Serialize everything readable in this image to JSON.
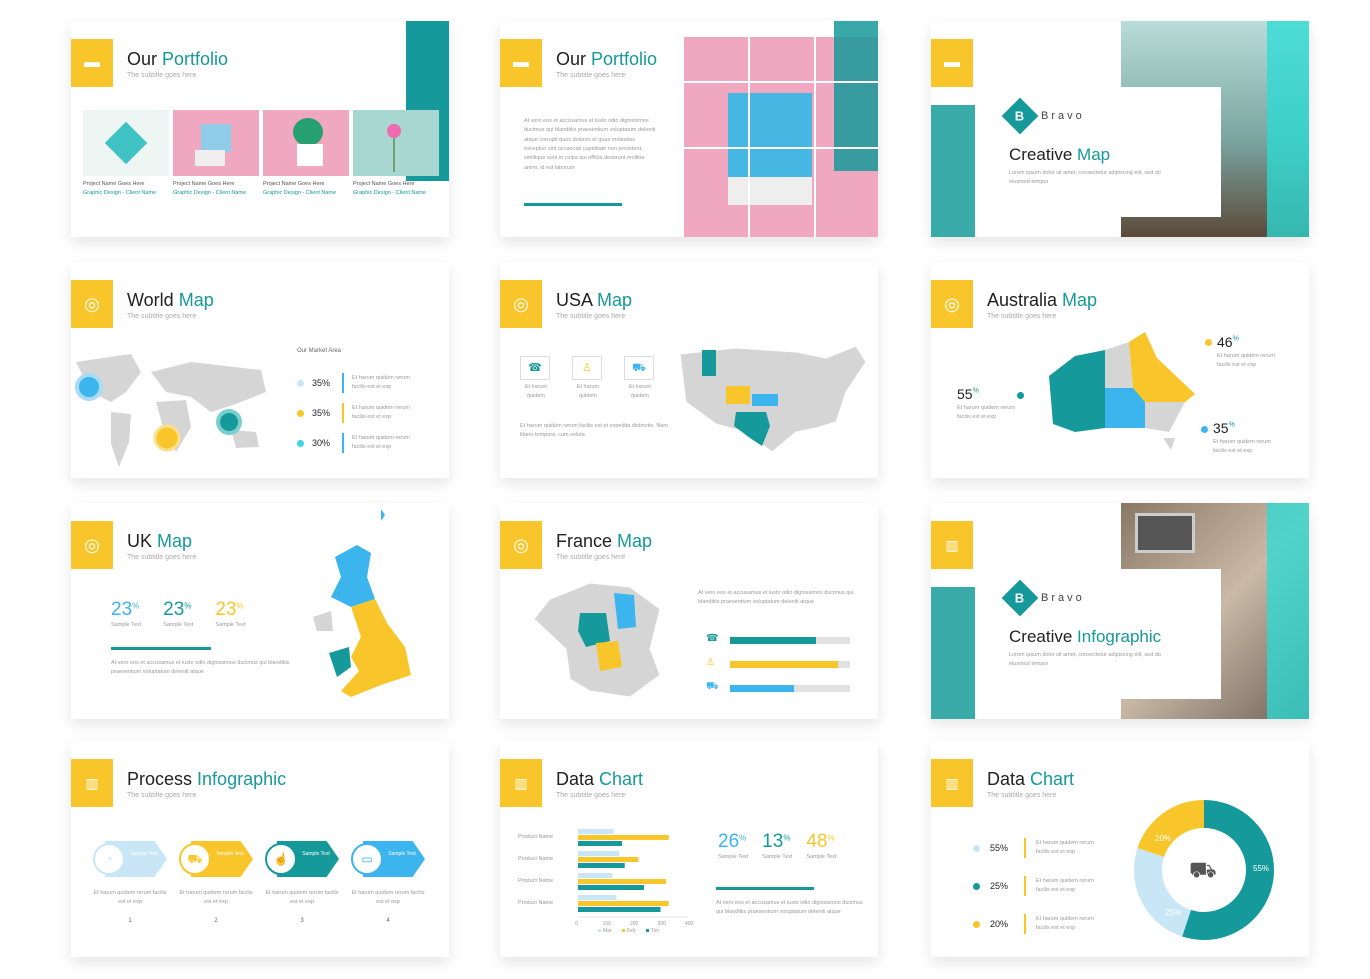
{
  "colors": {
    "teal": "#16999a",
    "yellow": "#f8c62a",
    "blue": "#3cb4ee",
    "lightblue": "#c9e6f7",
    "gray": "#d5d5d5",
    "pink": "#f0a8c0"
  },
  "subtitle": "The subtitle goes here",
  "lorem_short": "At vero eos et accusamus et iusto odio dignissimos ducimus qui blanditiis praesentium voluptatum deleniti atque",
  "lorem_long": "At vero eos et accusamus et iusto odio dignissimos ducimus qui blanditiis praesentium voluptatum deleniti atque corrupti quos dolores et quas molestias excepturi sint occaecati cupiditate non provident, similique sunt in culpa qui officia deserunt mollitia animi, id est laborum",
  "lorem_bravo": "Lorem ipsum dolor sit amet, consectetur adipiscing elit, sed do eiusmod tempor",
  "etharum": "Et harum quidem rerum facilis est et exp",
  "portfolio": {
    "t1": "Our",
    "t2": "Portfolio",
    "projects": [
      {
        "name": "Project Name Goes Here",
        "client": "Graphic Design - Client Name"
      },
      {
        "name": "Project Name Goes Here",
        "client": "Graphic Design - Client Name"
      },
      {
        "name": "Project Name Goes Here",
        "client": "Graphic Design - Client Name"
      },
      {
        "name": "Project Name Goes Here",
        "client": "Graphic Design - Client Name"
      }
    ]
  },
  "creative_map": {
    "brand": "Bravo",
    "t1": "Creative",
    "t2": "Map"
  },
  "creative_info": {
    "brand": "Bravo",
    "t1": "Creative",
    "t2": "Infographic"
  },
  "world": {
    "t1": "World",
    "t2": "Map",
    "market_title": "Our Market Area",
    "items": [
      {
        "pct": "35%",
        "color": "#c9e6f7"
      },
      {
        "pct": "35%",
        "color": "#f8c62a"
      },
      {
        "pct": "30%",
        "color": "#3cd4e6"
      }
    ]
  },
  "usa": {
    "t1": "USA",
    "t2": "Map",
    "icons": [
      "Et harum quidem",
      "Et harum quidem",
      "Et harum quidem"
    ],
    "text": "Et harum quidem rerum facilis est et expedita distinctio. Nam libero tempore, cum soluta"
  },
  "australia": {
    "t1": "Australia",
    "t2": "Map",
    "v1": "46",
    "v2": "55",
    "v3": "35",
    "pct": "%"
  },
  "uk": {
    "t1": "UK",
    "t2": "Map",
    "stats": [
      {
        "v": "23",
        "s": "Sample Text"
      },
      {
        "v": "23",
        "s": "Sample Text"
      },
      {
        "v": "23",
        "s": "Sample Text"
      }
    ],
    "pct": "%"
  },
  "france": {
    "t1": "France",
    "t2": "Map",
    "bars": [
      0.72,
      0.9,
      0.53
    ]
  },
  "process": {
    "t1": "Process",
    "t2": "Infographic",
    "label": "Sample Text",
    "nums": [
      "1",
      "2",
      "3",
      "4"
    ]
  },
  "datachart": {
    "t1": "Data",
    "t2": "Chart",
    "stats": [
      {
        "v": "26",
        "s": "Sample Text"
      },
      {
        "v": "13",
        "s": "Sample Text"
      },
      {
        "v": "48",
        "s": "Sample Text"
      }
    ],
    "pct": "%"
  },
  "datachart2": {
    "t1": "Data",
    "t2": "Chart",
    "items": [
      {
        "pct": "55%",
        "color": "#c9e6f7"
      },
      {
        "pct": "25%",
        "color": "#16999a"
      },
      {
        "pct": "20%",
        "color": "#f8c62a"
      }
    ],
    "donut": {
      "a": "55%",
      "b": "25%",
      "c": "20%"
    }
  },
  "chart_data": {
    "type": "bar",
    "categories": [
      "Product Name",
      "Product Name",
      "Product Name",
      "Product Name"
    ],
    "series": [
      {
        "name": "Mar",
        "values": [
          130,
          150,
          125,
          140
        ]
      },
      {
        "name": "Feb",
        "values": [
          330,
          220,
          320,
          330
        ]
      },
      {
        "name": "Ten",
        "values": [
          160,
          170,
          240,
          300
        ]
      }
    ],
    "xticks": [
      "0",
      "100",
      "200",
      "300",
      "400"
    ],
    "xlim": [
      0,
      400
    ]
  }
}
